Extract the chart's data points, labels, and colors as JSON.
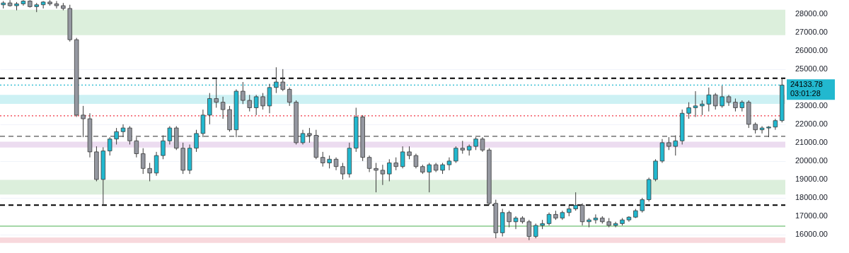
{
  "chart_data": {
    "type": "candlestick",
    "categories": [
      null,
      null,
      null,
      null,
      null,
      null,
      null,
      null,
      null,
      null,
      null,
      null,
      null,
      null,
      null,
      null,
      null,
      null,
      null,
      null,
      null,
      null,
      null,
      null,
      null,
      null,
      null,
      null,
      null,
      null,
      null,
      null,
      null,
      null,
      null,
      null,
      null,
      null,
      null,
      null,
      null,
      null,
      null,
      null,
      null,
      null,
      null,
      null,
      null,
      null,
      null,
      null,
      null,
      null,
      null,
      null,
      null,
      null,
      null,
      null,
      null,
      null,
      null,
      null,
      null,
      null,
      null,
      null,
      null,
      null,
      null,
      null,
      null,
      null,
      null,
      null,
      null,
      null,
      null,
      null,
      null,
      null,
      null,
      null,
      null,
      null,
      null,
      null,
      null,
      null,
      null,
      null,
      null,
      null,
      null,
      null,
      null,
      null,
      null,
      null,
      null,
      null,
      null,
      null,
      null,
      null,
      null,
      null,
      null,
      null,
      null,
      null,
      null,
      null,
      null,
      null,
      null,
      null
    ],
    "ohlc": [
      [
        28500,
        28700,
        28300,
        28600
      ],
      [
        28600,
        28750,
        28400,
        28450
      ],
      [
        28450,
        28650,
        28200,
        28550
      ],
      [
        28550,
        28750,
        28450,
        28700
      ],
      [
        28700,
        28750,
        28350,
        28400
      ],
      [
        28400,
        28600,
        28100,
        28500
      ],
      [
        28500,
        28700,
        28300,
        28650
      ],
      [
        28650,
        28750,
        28450,
        28550
      ],
      [
        28550,
        28700,
        28300,
        28450
      ],
      [
        28450,
        28600,
        28200,
        28300
      ],
      [
        28300,
        28500,
        26500,
        26600
      ],
      [
        26600,
        26700,
        22400,
        22500
      ],
      [
        22500,
        23000,
        21300,
        22300
      ],
      [
        22300,
        22600,
        20200,
        20500
      ],
      [
        20500,
        20800,
        18900,
        19000
      ],
      [
        19000,
        20750,
        17600,
        20550
      ],
      [
        20550,
        21300,
        20300,
        21200
      ],
      [
        21200,
        21800,
        20900,
        21600
      ],
      [
        21600,
        22000,
        21300,
        21800
      ],
      [
        21800,
        21900,
        20900,
        21100
      ],
      [
        21100,
        21300,
        20200,
        20400
      ],
      [
        20400,
        20700,
        19300,
        19600
      ],
      [
        19600,
        19900,
        18900,
        19350
      ],
      [
        19350,
        20500,
        19200,
        20300
      ],
      [
        20300,
        21400,
        20100,
        21100
      ],
      [
        21100,
        21900,
        20900,
        21800
      ],
      [
        21800,
        21900,
        20600,
        20700
      ],
      [
        20700,
        21000,
        19300,
        19500
      ],
      [
        19500,
        20900,
        19300,
        20700
      ],
      [
        20700,
        21700,
        20500,
        21500
      ],
      [
        21500,
        22800,
        21300,
        22500
      ],
      [
        22500,
        23700,
        22000,
        23400
      ],
      [
        23400,
        24500,
        22900,
        23200
      ],
      [
        23200,
        23500,
        22300,
        22800
      ],
      [
        22800,
        23000,
        21600,
        21700
      ],
      [
        21700,
        23900,
        21300,
        23800
      ],
      [
        23800,
        24300,
        23100,
        23300
      ],
      [
        23300,
        23600,
        22700,
        22900
      ],
      [
        22900,
        23600,
        22500,
        23500
      ],
      [
        23500,
        23700,
        22800,
        23000
      ],
      [
        23000,
        24200,
        22600,
        24000
      ],
      [
        24000,
        25100,
        23700,
        24300
      ],
      [
        24300,
        25000,
        23800,
        23900
      ],
      [
        23900,
        24000,
        23000,
        23200
      ],
      [
        23200,
        23300,
        20900,
        21000
      ],
      [
        21000,
        21700,
        20900,
        21500
      ],
      [
        21500,
        21800,
        21000,
        21400
      ],
      [
        21400,
        21700,
        20100,
        20200
      ],
      [
        20200,
        20500,
        19700,
        19900
      ],
      [
        19900,
        20300,
        19600,
        20100
      ],
      [
        20100,
        20200,
        19500,
        19700
      ],
      [
        19700,
        19900,
        19000,
        19300
      ],
      [
        19300,
        21000,
        19100,
        20700
      ],
      [
        20700,
        22900,
        20500,
        22400
      ],
      [
        22400,
        22500,
        20000,
        20200
      ],
      [
        20200,
        20300,
        19400,
        19600
      ],
      [
        19600,
        19900,
        18300,
        19500
      ],
      [
        19500,
        19800,
        18700,
        19300
      ],
      [
        19300,
        20100,
        18900,
        19900
      ],
      [
        19900,
        20200,
        19500,
        19700
      ],
      [
        19700,
        20800,
        19600,
        20500
      ],
      [
        20500,
        20800,
        20100,
        20300
      ],
      [
        20300,
        20400,
        19600,
        19700
      ],
      [
        19700,
        19800,
        19300,
        19400
      ],
      [
        19400,
        19900,
        18300,
        19800
      ],
      [
        19800,
        19900,
        19400,
        19500
      ],
      [
        19500,
        19900,
        19300,
        19800
      ],
      [
        19800,
        20200,
        19500,
        20000
      ],
      [
        20000,
        20800,
        19900,
        20700
      ],
      [
        20700,
        21100,
        20400,
        20600
      ],
      [
        20600,
        20900,
        20300,
        20800
      ],
      [
        20800,
        21300,
        20600,
        21200
      ],
      [
        21200,
        21300,
        20500,
        20600
      ],
      [
        20600,
        20700,
        17600,
        17700
      ],
      [
        17700,
        17900,
        15800,
        16100
      ],
      [
        16100,
        17400,
        15900,
        17200
      ],
      [
        17200,
        17300,
        16400,
        16700
      ],
      [
        16700,
        17000,
        16300,
        16900
      ],
      [
        16900,
        17000,
        16600,
        16700
      ],
      [
        16700,
        16800,
        15700,
        15900
      ],
      [
        15900,
        16600,
        15800,
        16500
      ],
      [
        16500,
        16800,
        16300,
        16600
      ],
      [
        16600,
        17200,
        16500,
        17100
      ],
      [
        17100,
        17300,
        16800,
        16900
      ],
      [
        16900,
        17300,
        16800,
        17200
      ],
      [
        17200,
        17600,
        17000,
        17400
      ],
      [
        17400,
        18300,
        17300,
        17600
      ],
      [
        17600,
        17700,
        16500,
        16700
      ],
      [
        16700,
        16900,
        16400,
        16800
      ],
      [
        16800,
        17100,
        16600,
        16900
      ],
      [
        16900,
        17000,
        16600,
        16700
      ],
      [
        16700,
        16900,
        16400,
        16500
      ],
      [
        16500,
        16700,
        16400,
        16600
      ],
      [
        16600,
        16900,
        16500,
        16800
      ],
      [
        16800,
        17000,
        16700,
        16950
      ],
      [
        16950,
        17400,
        16900,
        17300
      ],
      [
        17300,
        18000,
        17200,
        17900
      ],
      [
        17900,
        19100,
        17800,
        19000
      ],
      [
        19000,
        20100,
        18900,
        20000
      ],
      [
        20000,
        21200,
        19900,
        21000
      ],
      [
        21000,
        21300,
        20600,
        20800
      ],
      [
        20800,
        21400,
        20300,
        21100
      ],
      [
        21100,
        22800,
        20900,
        22600
      ],
      [
        22600,
        23200,
        22300,
        22900
      ],
      [
        22900,
        23800,
        22400,
        23000
      ],
      [
        23000,
        23300,
        22500,
        23100
      ],
      [
        23100,
        24000,
        22700,
        23600
      ],
      [
        23600,
        23700,
        22800,
        23000
      ],
      [
        23000,
        24100,
        22900,
        23500
      ],
      [
        23500,
        23600,
        23000,
        23200
      ],
      [
        23200,
        23400,
        22700,
        22900
      ],
      [
        22900,
        23300,
        22700,
        23200
      ],
      [
        23200,
        23300,
        21800,
        22000
      ],
      [
        22000,
        22100,
        21500,
        21700
      ],
      [
        21700,
        21900,
        21500,
        21800
      ],
      [
        21800,
        21900,
        21300,
        21850
      ],
      [
        21850,
        22300,
        21700,
        22200
      ],
      [
        22200,
        24500,
        22100,
        24133.78
      ]
    ],
    "colors": [
      "#22b8cf",
      "#9598a1",
      "#22b8cf",
      "#22b8cf",
      "#9598a1",
      "#22b8cf",
      "#22b8cf",
      "#9598a1",
      "#9598a1",
      "#9598a1",
      "#9598a1",
      "#9598a1",
      "#9598a1",
      "#9598a1",
      "#9598a1",
      "#22b8cf",
      "#22b8cf",
      "#22b8cf",
      "#22b8cf",
      "#9598a1",
      "#9598a1",
      "#9598a1",
      "#9598a1",
      "#22b8cf",
      "#22b8cf",
      "#22b8cf",
      "#9598a1",
      "#9598a1",
      "#22b8cf",
      "#22b8cf",
      "#22b8cf",
      "#22b8cf",
      "#9598a1",
      "#9598a1",
      "#9598a1",
      "#22b8cf",
      "#9598a1",
      "#9598a1",
      "#22b8cf",
      "#9598a1",
      "#22b8cf",
      "#22b8cf",
      "#9598a1",
      "#9598a1",
      "#9598a1",
      "#22b8cf",
      "#9598a1",
      "#9598a1",
      "#9598a1",
      "#22b8cf",
      "#9598a1",
      "#9598a1",
      "#22b8cf",
      "#22b8cf",
      "#9598a1",
      "#9598a1",
      "#9598a1",
      "#9598a1",
      "#22b8cf",
      "#9598a1",
      "#22b8cf",
      "#9598a1",
      "#9598a1",
      "#9598a1",
      "#22b8cf",
      "#9598a1",
      "#22b8cf",
      "#22b8cf",
      "#22b8cf",
      "#9598a1",
      "#22b8cf",
      "#22b8cf",
      "#9598a1",
      "#9598a1",
      "#9598a1",
      "#22b8cf",
      "#9598a1",
      "#22b8cf",
      "#9598a1",
      "#9598a1",
      "#22b8cf",
      "#22b8cf",
      "#22b8cf",
      "#9598a1",
      "#22b8cf",
      "#22b8cf",
      "#22b8cf",
      "#9598a1",
      "#22b8cf",
      "#22b8cf",
      "#9598a1",
      "#9598a1",
      "#22b8cf",
      "#22b8cf",
      "#22b8cf",
      "#22b8cf",
      "#22b8cf",
      "#22b8cf",
      "#22b8cf",
      "#22b8cf",
      "#9598a1",
      "#22b8cf",
      "#22b8cf",
      "#22b8cf",
      "#22b8cf",
      "#22b8cf",
      "#22b8cf",
      "#9598a1",
      "#22b8cf",
      "#9598a1",
      "#9598a1",
      "#22b8cf",
      "#9598a1",
      "#9598a1",
      "#22b8cf",
      "#22b8cf",
      "#22b8cf",
      "#22b8cf"
    ],
    "ylim": [
      15000,
      28760
    ],
    "yticks": [
      {
        "value": 16000,
        "label": "16000.00"
      },
      {
        "value": 17000,
        "label": "17000.00"
      },
      {
        "value": 18000,
        "label": "18000.00"
      },
      {
        "value": 19000,
        "label": "19000.00"
      },
      {
        "value": 20000,
        "label": "20000.00"
      },
      {
        "value": 21000,
        "label": "21000.00"
      },
      {
        "value": 22000,
        "label": "22000.00"
      },
      {
        "value": 23000,
        "label": "23000.00"
      },
      {
        "value": 25000,
        "label": "25000.00"
      },
      {
        "value": 26000,
        "label": "26000.00"
      },
      {
        "value": 27000,
        "label": "27000.00"
      },
      {
        "value": 28000,
        "label": "28000.00"
      }
    ],
    "grid": "y",
    "bands": [
      {
        "axis": "y",
        "from": 26850,
        "to": 28230,
        "color": "#dcefdc"
      },
      {
        "axis": "y",
        "from": 23110,
        "to": 23600,
        "color": "#cdf1f4"
      },
      {
        "axis": "y",
        "from": 20740,
        "to": 21050,
        "color": "#ecdcf0"
      },
      {
        "axis": "y",
        "from": 18180,
        "to": 18980,
        "color": "#dcefdc"
      },
      {
        "axis": "y",
        "from": 15550,
        "to": 15850,
        "color": "#f8d8dc"
      }
    ],
    "ref_lines": [
      {
        "axis": "y",
        "value": 24500,
        "color": "#000000",
        "line_style": "dashed"
      },
      {
        "axis": "y",
        "value": 17600,
        "color": "#000000",
        "line_style": "dashed"
      },
      {
        "axis": "y",
        "value": 21350,
        "color": "#555555",
        "line_style": "dashed"
      },
      {
        "axis": "y",
        "value": 22460,
        "color": "#f23645",
        "line_style": "dotted"
      },
      {
        "axis": "y",
        "value": 16460,
        "color": "#4caf50",
        "line_style": "solid"
      },
      {
        "axis": "y",
        "value": 24133.78,
        "label": "24133.78",
        "color": "#22b8cf",
        "line_style": "dotted"
      }
    ],
    "annotations": [
      "03:01:28"
    ]
  }
}
